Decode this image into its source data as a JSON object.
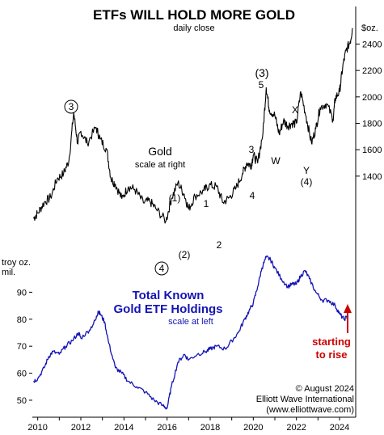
{
  "colors": {
    "gold_line": "#000000",
    "etf_line": "#1414b4",
    "arrow": "#cc0000",
    "axis": "#000000"
  },
  "chart_data": {
    "type": "line",
    "title": "ETFs WILL HOLD MORE GOLD",
    "subtitle": "daily close",
    "x_ticks": [
      "2010",
      "2012",
      "2014",
      "2016",
      "2018",
      "2020",
      "2022",
      "2024"
    ],
    "right_axis": {
      "unit_label": "$oz.",
      "ticks": [
        "2400",
        "2200",
        "2000",
        "1800",
        "1600",
        "1400"
      ],
      "range": [
        1050,
        2550
      ]
    },
    "left_axis": {
      "unit_label_1": "troy oz.",
      "unit_label_2": "mil.",
      "ticks": [
        "90",
        "80",
        "70",
        "60",
        "50"
      ],
      "range": [
        44,
        103
      ]
    },
    "series": [
      {
        "name": "Gold",
        "sub_label": "scale at right",
        "x": [
          2009.8,
          2010.0,
          2010.3,
          2010.6,
          2010.9,
          2011.2,
          2011.45,
          2011.67,
          2011.85,
          2012.0,
          2012.3,
          2012.7,
          2012.9,
          2013.2,
          2013.4,
          2013.6,
          2013.9,
          2014.2,
          2014.5,
          2014.9,
          2015.2,
          2015.5,
          2015.95,
          2016.2,
          2016.5,
          2016.8,
          2017.0,
          2017.3,
          2017.7,
          2017.95,
          2018.3,
          2018.6,
          2018.9,
          2019.2,
          2019.5,
          2019.7,
          2019.9,
          2020.0,
          2020.2,
          2020.45,
          2020.6,
          2020.75,
          2021.0,
          2021.2,
          2021.4,
          2021.6,
          2021.8,
          2022.0,
          2022.2,
          2022.45,
          2022.7,
          2022.9,
          2023.1,
          2023.4,
          2023.7,
          2023.8,
          2024.0,
          2024.15,
          2024.3,
          2024.5,
          2024.6
        ],
        "y": [
          1080,
          1120,
          1200,
          1240,
          1380,
          1420,
          1520,
          1880,
          1650,
          1740,
          1650,
          1770,
          1680,
          1600,
          1380,
          1340,
          1230,
          1320,
          1300,
          1200,
          1210,
          1150,
          1060,
          1230,
          1350,
          1260,
          1150,
          1250,
          1290,
          1330,
          1320,
          1200,
          1240,
          1310,
          1420,
          1500,
          1480,
          1560,
          1500,
          1730,
          2070,
          1900,
          1860,
          1720,
          1820,
          1780,
          1800,
          1800,
          2040,
          1850,
          1650,
          1760,
          1920,
          1950,
          1830,
          1990,
          2040,
          2230,
          2350,
          2420,
          2520
        ]
      },
      {
        "name": "Total Known Gold ETF Holdings",
        "sub_label": "scale at left",
        "x": [
          2009.8,
          2010.0,
          2010.3,
          2010.5,
          2010.7,
          2011.0,
          2011.3,
          2011.6,
          2011.9,
          2012.0,
          2012.4,
          2012.7,
          2012.8,
          2012.9,
          2013.1,
          2013.3,
          2013.6,
          2013.9,
          2014.2,
          2014.6,
          2015.0,
          2015.4,
          2015.8,
          2016.0,
          2016.2,
          2016.5,
          2016.8,
          2017.0,
          2017.4,
          2017.8,
          2018.0,
          2018.3,
          2018.7,
          2019.0,
          2019.3,
          2019.6,
          2019.8,
          2020.0,
          2020.2,
          2020.4,
          2020.6,
          2020.8,
          2021.0,
          2021.3,
          2021.6,
          2021.8,
          2022.0,
          2022.2,
          2022.4,
          2022.6,
          2022.9,
          2023.2,
          2023.5,
          2023.8,
          2024.0,
          2024.2,
          2024.4
        ],
        "y": [
          57,
          58,
          62,
          66,
          68,
          67,
          70,
          72,
          75,
          73,
          76,
          80,
          83,
          82,
          79,
          71,
          62,
          60,
          57,
          55,
          53,
          50,
          48,
          47,
          55,
          64,
          67,
          65,
          67,
          68,
          69,
          70,
          69,
          72,
          75,
          80,
          83,
          86,
          92,
          99,
          103,
          102,
          99,
          95,
          92,
          93,
          93,
          96,
          98,
          95,
          90,
          87,
          87,
          85,
          82,
          80,
          81
        ]
      }
    ],
    "wave_labels": [
      "3",
      "(1)",
      "1",
      "2",
      "(2)",
      "4",
      "3",
      "4",
      "(3)",
      "5",
      "W",
      "X",
      "Y",
      "(4)"
    ],
    "annotation": {
      "line1": "starting",
      "line2": "to rise"
    },
    "credit": {
      "line1": "© August 2024",
      "line2": "Elliott Wave International",
      "line3": "(www.elliottwave.com)"
    }
  }
}
